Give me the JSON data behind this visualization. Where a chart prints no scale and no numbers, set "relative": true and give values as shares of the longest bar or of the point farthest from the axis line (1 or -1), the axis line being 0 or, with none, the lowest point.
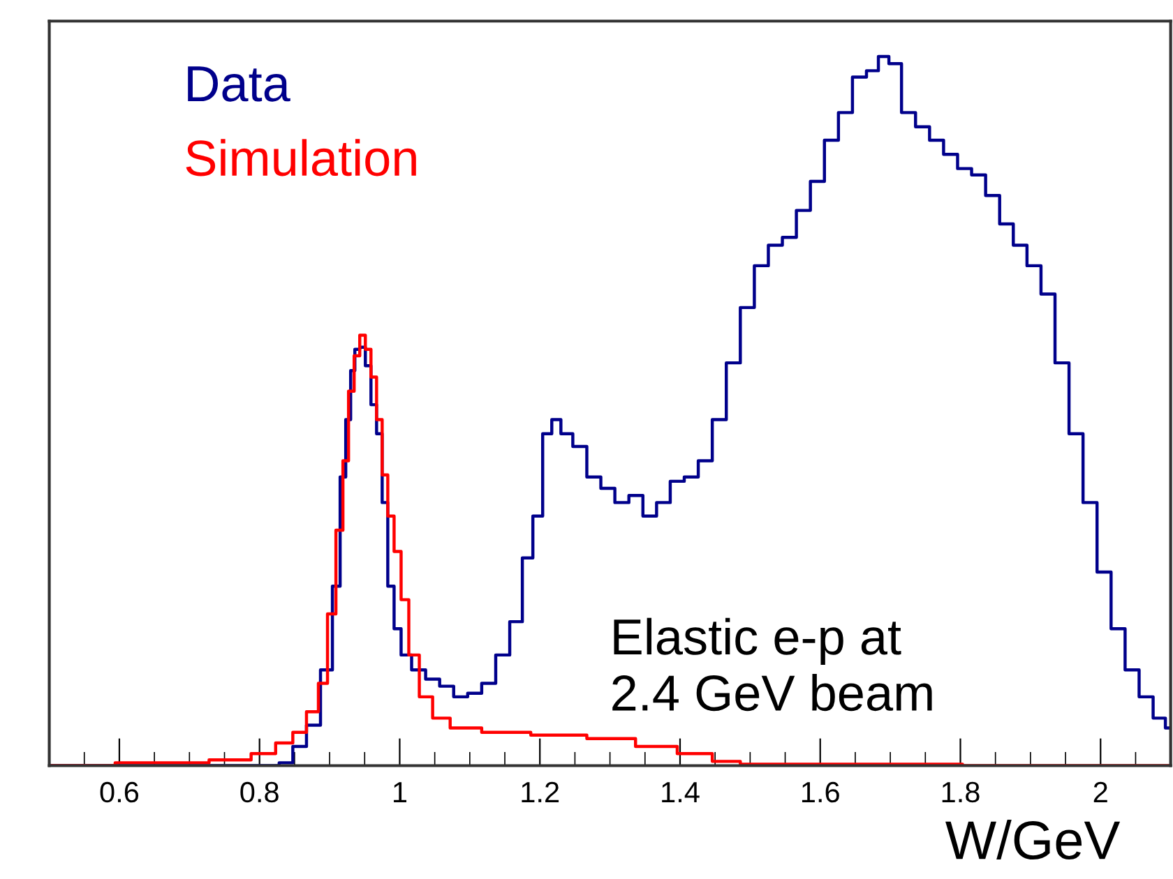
{
  "chart_data": {
    "type": "step",
    "relative": true,
    "xlabel": "W/GeV",
    "xlim": [
      0.5,
      2.1
    ],
    "xticks": [
      0.6,
      0.8,
      {
        "value": 1,
        "label": "1"
      },
      1.2,
      1.4,
      1.6,
      1.8,
      {
        "value": 2,
        "label": "2"
      }
    ],
    "tick_labels": "x",
    "grid": false,
    "legend": "top left",
    "annotations": [
      "Elastic e-p at\n2.4 GeV beam"
    ],
    "series": [
      {
        "name": "Data",
        "color": "#00008b",
        "x": [
          0.5,
          0.818,
          0.838,
          0.857,
          0.877,
          0.897,
          0.911,
          0.919,
          0.927,
          0.933,
          0.939,
          0.947,
          0.955,
          0.963,
          0.971,
          0.979,
          0.987,
          0.997,
          1.007,
          1.027,
          1.047,
          1.067,
          1.087,
          1.107,
          1.127,
          1.147,
          1.167,
          1.183,
          1.197,
          1.211,
          1.223,
          1.237,
          1.257,
          1.277,
          1.297,
          1.317,
          1.337,
          1.357,
          1.376,
          1.396,
          1.416,
          1.436,
          1.456,
          1.476,
          1.496,
          1.516,
          1.536,
          1.556,
          1.576,
          1.596,
          1.616,
          1.636,
          1.656,
          1.676,
          1.69,
          1.706,
          1.726,
          1.746,
          1.766,
          1.786,
          1.806,
          1.826,
          1.846,
          1.866,
          1.885,
          1.905,
          1.925,
          1.945,
          1.965,
          1.985,
          2.005,
          2.025,
          2.045,
          2.065,
          2.085,
          2.1
        ],
        "values": [
          0,
          0,
          0.004,
          0.027,
          0.057,
          0.135,
          0.253,
          0.407,
          0.488,
          0.557,
          0.587,
          0.59,
          0.564,
          0.509,
          0.468,
          0.371,
          0.253,
          0.193,
          0.156,
          0.135,
          0.122,
          0.112,
          0.097,
          0.102,
          0.116,
          0.156,
          0.203,
          0.293,
          0.352,
          0.468,
          0.488,
          0.468,
          0.45,
          0.407,
          0.391,
          0.371,
          0.381,
          0.352,
          0.371,
          0.401,
          0.407,
          0.43,
          0.488,
          0.568,
          0.646,
          0.705,
          0.734,
          0.745,
          0.783,
          0.824,
          0.882,
          0.921,
          0.971,
          0.98,
          1,
          0.99,
          0.921,
          0.901,
          0.882,
          0.862,
          0.842,
          0.833,
          0.804,
          0.764,
          0.734,
          0.705,
          0.665,
          0.568,
          0.468,
          0.371,
          0.273,
          0.193,
          0.135,
          0.097,
          0.067,
          0.053
        ]
      },
      {
        "name": "Simulation",
        "color": "#ff0000",
        "x": [
          0.5,
          0.688,
          0.768,
          0.808,
          0.838,
          0.857,
          0.877,
          0.891,
          0.903,
          0.915,
          0.923,
          0.931,
          0.939,
          0.947,
          0.955,
          0.963,
          0.971,
          0.979,
          0.987,
          0.997,
          1.007,
          1.019,
          1.037,
          1.057,
          1.087,
          1.147,
          1.227,
          1.307,
          1.366,
          1.426,
          1.466,
          1.506,
          2.1
        ],
        "values": [
          0,
          0.004,
          0.008,
          0.017,
          0.032,
          0.047,
          0.076,
          0.116,
          0.214,
          0.332,
          0.43,
          0.528,
          0.578,
          0.607,
          0.587,
          0.548,
          0.488,
          0.41,
          0.352,
          0.302,
          0.234,
          0.156,
          0.097,
          0.067,
          0.053,
          0.047,
          0.043,
          0.038,
          0.027,
          0.017,
          0.006,
          0.002,
          0
        ]
      }
    ]
  }
}
